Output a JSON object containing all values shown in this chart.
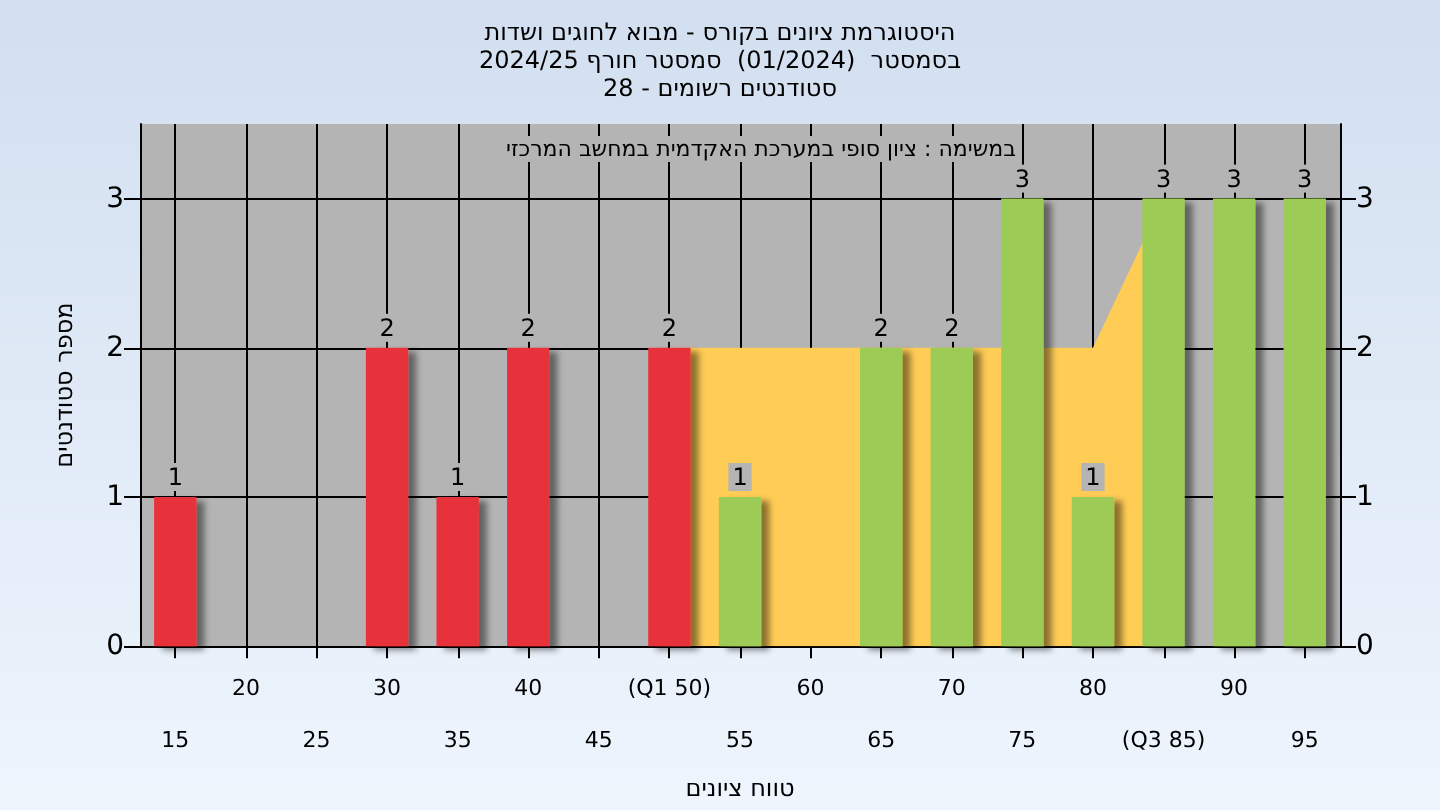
{
  "chart_data": {
    "type": "bar",
    "title": "היסטוגרמת ציונים בקורס - מבוא לחוגים ושדות",
    "subtitle": "בסמסטר  (01/2024)  סמסטר חורף 2024/25\nסטודנטים רשומים - 28",
    "xlabel": "טווח ציונים",
    "ylabel": "מספר סטודנטים",
    "annotations": [
      "במשימה : ציון סופי במערכת האקדמית במחשב המרכזי"
    ],
    "categories": [
      "15",
      "20",
      "25",
      "30",
      "35",
      "40",
      "45",
      "(Q1 50)",
      "55",
      "60",
      "65",
      "70",
      "75",
      "80",
      "(Q3 85)",
      "90",
      "95"
    ],
    "series": [
      {
        "type": "area",
        "color": "#ffcc55",
        "x": [
          "(Q1 50)",
          "55",
          "60",
          "65",
          "70",
          "75",
          "80",
          "(Q3 85)"
        ],
        "values": [
          2,
          2,
          2,
          2,
          2,
          null,
          2,
          3
        ]
      },
      {
        "values": [
          1,
          0,
          0,
          2,
          1,
          2,
          0,
          2,
          1,
          0,
          2,
          2,
          3,
          1,
          3,
          3,
          3
        ],
        "colors": [
          "#e8333a",
          "#e8333a",
          "#e8333a",
          "#e8333a",
          "#e8333a",
          "#e8333a",
          "#e8333a",
          "#e8333a",
          "#9ccc55",
          "#9ccc55",
          "#9ccc55",
          "#9ccc55",
          "#9ccc55",
          "#9ccc55",
          "#9ccc55",
          "#9ccc55",
          "#9ccc55"
        ],
        "value_labels": [
          "1",
          null,
          null,
          "2",
          "1",
          "2",
          null,
          "2",
          "1",
          null,
          "2",
          "2",
          "3",
          "1",
          "3",
          "3",
          "3"
        ]
      }
    ],
    "ylim": [
      0,
      3.5
    ],
    "yticks": [
      0,
      1,
      2,
      3
    ],
    "y2lim": [
      0,
      3.5
    ],
    "y2ticks": [
      0,
      1,
      2,
      3
    ],
    "grid": true
  }
}
